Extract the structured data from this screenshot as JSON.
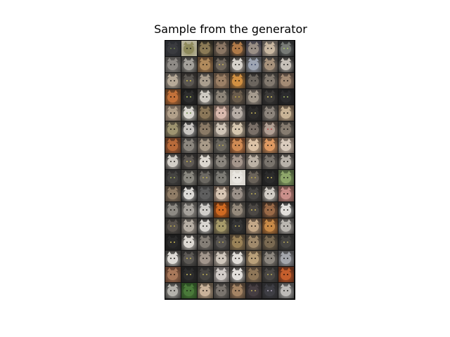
{
  "figure": {
    "title": "Sample from the generator",
    "grid": {
      "rows": 16,
      "cols": 8
    },
    "colors": {
      "background": "#ffffff",
      "cell_gap": "#141414",
      "frame": "#000000"
    },
    "cells": [
      {
        "bg": "#2a2c30",
        "face": "#3a3b3f",
        "eye": "#6b7b4a"
      },
      {
        "bg": "#b7b39a",
        "face": "#8e8a5c",
        "eye": "#2a2a20"
      },
      {
        "bg": "#2d2a22",
        "face": "#8b7a56",
        "eye": "#1b1a16"
      },
      {
        "bg": "#3a342e",
        "face": "#8a7664",
        "eye": "#1d1a16"
      },
      {
        "bg": "#2b2622",
        "face": "#b07a48",
        "eye": "#2a1c10"
      },
      {
        "bg": "#3c3a44",
        "face": "#9a8f86",
        "eye": "#2a2826"
      },
      {
        "bg": "#5b5550",
        "face": "#c9b8a2",
        "eye": "#3a3530"
      },
      {
        "bg": "#2a2b2c",
        "face": "#777a76",
        "eye": "#a8c26a"
      },
      {
        "bg": "#4c4a48",
        "face": "#8f8b86",
        "eye": "#2a2a28"
      },
      {
        "bg": "#3b3a38",
        "face": "#a3a09a",
        "eye": "#2c2b28"
      },
      {
        "bg": "#56402c",
        "face": "#b08a5c",
        "eye": "#2d2418"
      },
      {
        "bg": "#2c2a28",
        "face": "#6f665c",
        "eye": "#c6b25a"
      },
      {
        "bg": "#3a3633",
        "face": "#d7d2cb",
        "eye": "#2f2d2a"
      },
      {
        "bg": "#4a4b4e",
        "face": "#9ea5b3",
        "eye": "#3f4b6a"
      },
      {
        "bg": "#3e3b39",
        "face": "#a7927c",
        "eye": "#2b2621"
      },
      {
        "bg": "#2f2e2d",
        "face": "#c6c0b8",
        "eye": "#2a2927"
      },
      {
        "bg": "#504c48",
        "face": "#b7aa98",
        "eye": "#2d2924"
      },
      {
        "bg": "#2e2b29",
        "face": "#5b5752",
        "eye": "#c9b84a"
      },
      {
        "bg": "#3f3c39",
        "face": "#aa9e8e",
        "eye": "#2b2824"
      },
      {
        "bg": "#5a4a3c",
        "face": "#9c8066",
        "eye": "#2b2218"
      },
      {
        "bg": "#4e3a24",
        "face": "#d19042",
        "eye": "#2f1f0e"
      },
      {
        "bg": "#2a2827",
        "face": "#6b655e",
        "eye": "#2a2826"
      },
      {
        "bg": "#3b3835",
        "face": "#837a70",
        "eye": "#26231f"
      },
      {
        "bg": "#4d4038",
        "face": "#a48b74",
        "eye": "#2a221c"
      },
      {
        "bg": "#5e3c22",
        "face": "#c3723a",
        "eye": "#2e1b0c"
      },
      {
        "bg": "#1a1a1a",
        "face": "#2e2e2e",
        "eye": "#aabb55"
      },
      {
        "bg": "#3c3a37",
        "face": "#cfcac2",
        "eye": "#2c2a26"
      },
      {
        "bg": "#3b3936",
        "face": "#8d8478",
        "eye": "#272420"
      },
      {
        "bg": "#36312c",
        "face": "#6a5c4c",
        "eye": "#b8a448"
      },
      {
        "bg": "#4b4642",
        "face": "#a59b8e",
        "eye": "#2a2622"
      },
      {
        "bg": "#232222",
        "face": "#3d3b39",
        "eye": "#d0c060"
      },
      {
        "bg": "#1d1d1e",
        "face": "#2c2c2e",
        "eye": "#a0b060"
      },
      {
        "bg": "#6a5c50",
        "face": "#b2a08a",
        "eye": "#2f2a24"
      },
      {
        "bg": "#3b3b38",
        "face": "#dcd9d2",
        "eye": "#6a8a4a"
      },
      {
        "bg": "#3c352c",
        "face": "#8a7658",
        "eye": "#231c12"
      },
      {
        "bg": "#6e5b52",
        "face": "#d9b9ad",
        "eye": "#3a2f2b"
      },
      {
        "bg": "#4a4644",
        "face": "#b7aea6",
        "eye": "#2c2826"
      },
      {
        "bg": "#1f1e1e",
        "face": "#2e2d2c",
        "eye": "#bcae5a"
      },
      {
        "bg": "#3c3936",
        "face": "#8d857c",
        "eye": "#27231f"
      },
      {
        "bg": "#5a4c3e",
        "face": "#c9b496",
        "eye": "#2e2820"
      },
      {
        "bg": "#4a4438",
        "face": "#9e9470",
        "eye": "#2a261c"
      },
      {
        "bg": "#2a2a2a",
        "face": "#c9c6c2",
        "eye": "#3a3a38"
      },
      {
        "bg": "#3c3731",
        "face": "#8a7a66",
        "eye": "#221d18"
      },
      {
        "bg": "#5a534c",
        "face": "#cfc5b8",
        "eye": "#2d2924"
      },
      {
        "bg": "#524a40",
        "face": "#d6c7b0",
        "eye": "#2e2923"
      },
      {
        "bg": "#2b2927",
        "face": "#7a7068",
        "eye": "#26221e"
      },
      {
        "bg": "#453c36",
        "face": "#b2a094",
        "eye": "#b04a4a"
      },
      {
        "bg": "#393632",
        "face": "#867c70",
        "eye": "#25221e"
      },
      {
        "bg": "#5a3622",
        "face": "#b86a3a",
        "eye": "#2d190c"
      },
      {
        "bg": "#3c3a38",
        "face": "#8b867e",
        "eye": "#26241f"
      },
      {
        "bg": "#4a443e",
        "face": "#a89a88",
        "eye": "#2a2520"
      },
      {
        "bg": "#3a3936",
        "face": "#6a665e",
        "eye": "#b9aa54"
      },
      {
        "bg": "#5e3a24",
        "face": "#cf8a54",
        "eye": "#2e1c0e"
      },
      {
        "bg": "#6a5644",
        "face": "#dcc2a6",
        "eye": "#332a20"
      },
      {
        "bg": "#5e4430",
        "face": "#e09a62",
        "eye": "#2f2014"
      },
      {
        "bg": "#6e6258",
        "face": "#d9cbbd",
        "eye": "#34302a"
      },
      {
        "bg": "#3a3836",
        "face": "#d3cfc8",
        "eye": "#2d2b28"
      },
      {
        "bg": "#2c2a29",
        "face": "#5f5a55",
        "eye": "#c0b050"
      },
      {
        "bg": "#413d39",
        "face": "#ddd8d0",
        "eye": "#2d2a26"
      },
      {
        "bg": "#3b3936",
        "face": "#8a857d",
        "eye": "#26241f"
      },
      {
        "bg": "#4a4340",
        "face": "#a5968c",
        "eye": "#2a2521"
      },
      {
        "bg": "#514b45",
        "face": "#bcb2a6",
        "eye": "#2c2823"
      },
      {
        "bg": "#3a3735",
        "face": "#7a746d",
        "eye": "#25221f"
      },
      {
        "bg": "#3c3936",
        "face": "#b8b2aa",
        "eye": "#27241f"
      },
      {
        "bg": "#2c2b2b",
        "face": "#454442",
        "eye": "#9aa454"
      },
      {
        "bg": "#3b3a37",
        "face": "#8a8880",
        "eye": "#27261f"
      },
      {
        "bg": "#2e2d2b",
        "face": "#6b6862",
        "eye": "#b8aa54"
      },
      {
        "bg": "#3a3a38",
        "face": "#7c7a74",
        "eye": "#26251f"
      },
      {
        "bg": "#d8d4cc",
        "face": "#e9e6e0",
        "eye": "#3a3834"
      },
      {
        "bg": "#2e2c2a",
        "face": "#6a635a",
        "eye": "#b4a24c"
      },
      {
        "bg": "#1e1e1e",
        "face": "#2c2c2c",
        "eye": "#c4b45a"
      },
      {
        "bg": "#4a5a3a",
        "face": "#8ea66a",
        "eye": "#2a3020"
      },
      {
        "bg": "#4a4036",
        "face": "#8f7c66",
        "eye": "#28221a"
      },
      {
        "bg": "#222222",
        "face": "#dcdad6",
        "eye": "#2f2e2c"
      },
      {
        "bg": "#3c3c3c",
        "face": "#5e5e5e",
        "eye": "#2a2a2a"
      },
      {
        "bg": "#5a4c42",
        "face": "#d6c4b2",
        "eye": "#302922"
      },
      {
        "bg": "#3e3b38",
        "face": "#9a9088",
        "eye": "#27231f"
      },
      {
        "bg": "#2b2a29",
        "face": "#4a4846",
        "eye": "#b8aa56"
      },
      {
        "bg": "#3c3a37",
        "face": "#d1ccc5",
        "eye": "#2b2926"
      },
      {
        "bg": "#6a4a44",
        "face": "#c98f8a",
        "eye": "#35251f"
      },
      {
        "bg": "#3a3937",
        "face": "#8d8a84",
        "eye": "#26251f"
      },
      {
        "bg": "#4c4a47",
        "face": "#a6a29c",
        "eye": "#2a2825"
      },
      {
        "bg": "#404040",
        "face": "#cfcdc9",
        "eye": "#2c2b28"
      },
      {
        "bg": "#5a2e12",
        "face": "#d06a22",
        "eye": "#2e170a"
      },
      {
        "bg": "#3e3b37",
        "face": "#958a7c",
        "eye": "#27231f"
      },
      {
        "bg": "#2a2928",
        "face": "#4c4844",
        "eye": "#c2b25a"
      },
      {
        "bg": "#3c2c22",
        "face": "#9a6a48",
        "eye": "#251a12"
      },
      {
        "bg": "#2c2c2c",
        "face": "#e2e0dc",
        "eye": "#33322f"
      },
      {
        "bg": "#2f2d2b",
        "face": "#5a544e",
        "eye": "#b8a650"
      },
      {
        "bg": "#4a4642",
        "face": "#b6aea4",
        "eye": "#2a2723"
      },
      {
        "bg": "#2d2c2b",
        "face": "#d9d6d1",
        "eye": "#2b2a27"
      },
      {
        "bg": "#4a4434",
        "face": "#a69a6a",
        "eye": "#29251a"
      },
      {
        "bg": "#232323",
        "face": "#363636",
        "eye": "#b4a656"
      },
      {
        "bg": "#524438",
        "face": "#c4a888",
        "eye": "#2d251d"
      },
      {
        "bg": "#5a3a20",
        "face": "#c88a48",
        "eye": "#2d1d0e"
      },
      {
        "bg": "#484644",
        "face": "#bbb7b1",
        "eye": "#2a2826"
      },
      {
        "bg": "#1c1c1c",
        "face": "#2a2a2a",
        "eye": "#c8b656"
      },
      {
        "bg": "#3e3c3a",
        "face": "#ddd9d3",
        "eye": "#2c2a27"
      },
      {
        "bg": "#3a3836",
        "face": "#847e76",
        "eye": "#26231f"
      },
      {
        "bg": "#2e2d2c",
        "face": "#575451",
        "eye": "#b2a454"
      },
      {
        "bg": "#4c4030",
        "face": "#9a8258",
        "eye": "#281f15"
      },
      {
        "bg": "#463e34",
        "face": "#a08a6c",
        "eye": "#28211a"
      },
      {
        "bg": "#3a342c",
        "face": "#7a6a52",
        "eye": "#231c14"
      },
      {
        "bg": "#2a2a29",
        "face": "#464542",
        "eye": "#b0a45a"
      },
      {
        "bg": "#3b3a38",
        "face": "#dedbd6",
        "eye": "#2c2b28"
      },
      {
        "bg": "#2d2c2b",
        "face": "#5c5955",
        "eye": "#bcae58"
      },
      {
        "bg": "#4a4440",
        "face": "#a2968c",
        "eye": "#2a2521"
      },
      {
        "bg": "#56504a",
        "face": "#cfc6bb",
        "eye": "#2e2a25"
      },
      {
        "bg": "#3c3a38",
        "face": "#e0ddd8",
        "eye": "#2c2a28"
      },
      {
        "bg": "#5a4c3a",
        "face": "#b9a07a",
        "eye": "#2c241a"
      },
      {
        "bg": "#3c3a37",
        "face": "#8e8880",
        "eye": "#27241f"
      },
      {
        "bg": "#4a4a4c",
        "face": "#a4a6ac",
        "eye": "#2a2a2c"
      },
      {
        "bg": "#5a3c2c",
        "face": "#a8785a",
        "eye": "#2b1d14"
      },
      {
        "bg": "#1e1e1e",
        "face": "#2d2d2d",
        "eye": "#c2b45c"
      },
      {
        "bg": "#2b2a29",
        "face": "#474542",
        "eye": "#b6a856"
      },
      {
        "bg": "#5a5654",
        "face": "#d2ccc8",
        "eye": "#2f2c2a"
      },
      {
        "bg": "#3b3937",
        "face": "#e2dfdb",
        "eye": "#2c2a28"
      },
      {
        "bg": "#4a3e32",
        "face": "#8e7658",
        "eye": "#271f16"
      },
      {
        "bg": "#2c2b2a",
        "face": "#4b4845",
        "eye": "#b0a454"
      },
      {
        "bg": "#5a2c1a",
        "face": "#c45e2c",
        "eye": "#2d150a"
      },
      {
        "bg": "#3e3e3c",
        "face": "#b4b2ac",
        "eye": "#2a2927"
      },
      {
        "bg": "#2a4a22",
        "face": "#4a7a3a",
        "eye": "#1e2c18"
      },
      {
        "bg": "#5a4e40",
        "face": "#c9b29a",
        "eye": "#2e271f"
      },
      {
        "bg": "#3a3836",
        "face": "#7a746e",
        "eye": "#26231f"
      },
      {
        "bg": "#4a3c30",
        "face": "#a48464",
        "eye": "#28201a"
      },
      {
        "bg": "#2a2628",
        "face": "#463e42",
        "eye": "#b6a45a"
      },
      {
        "bg": "#2a2a2c",
        "face": "#3e3e44",
        "eye": "#a8a0b4"
      },
      {
        "bg": "#484848",
        "face": "#bdbbb8",
        "eye": "#2a2a28"
      }
    ]
  }
}
